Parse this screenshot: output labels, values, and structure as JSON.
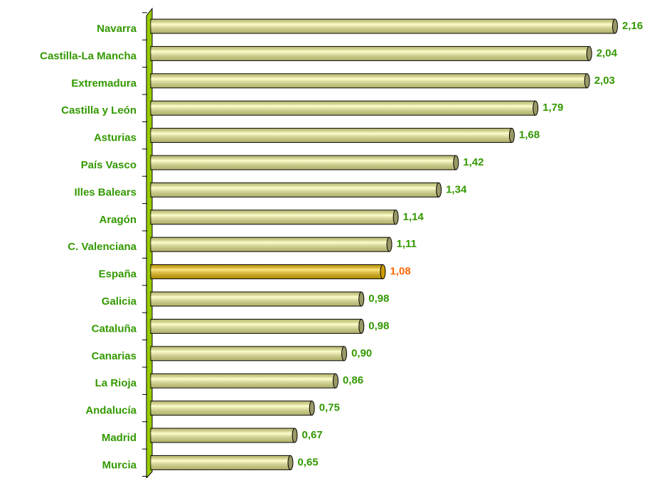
{
  "chart_data": {
    "type": "bar",
    "orientation": "horizontal",
    "categories": [
      "Navarra",
      "Castilla-La Mancha",
      "Extremadura",
      "Castilla y León",
      "Asturias",
      "País Vasco",
      "Illes Balears",
      "Aragón",
      "C. Valenciana",
      "España",
      "Galicia",
      "Cataluña",
      "Canarias",
      "La Rioja",
      "Andalucía",
      "Madrid",
      "Murcia"
    ],
    "values": [
      2.16,
      2.04,
      2.03,
      1.79,
      1.68,
      1.42,
      1.34,
      1.14,
      1.11,
      1.08,
      0.98,
      0.98,
      0.9,
      0.86,
      0.75,
      0.67,
      0.65
    ],
    "value_labels": [
      "2,16",
      "2,04",
      "2,03",
      "1,79",
      "1,68",
      "1,42",
      "1,34",
      "1,14",
      "1,11",
      "1,08",
      "0,98",
      "0,98",
      "0,90",
      "0,86",
      "0,75",
      "0,67",
      "0,65"
    ],
    "colors": [
      "#ffff99",
      "#ffff99",
      "#ffff99",
      "#ffff99",
      "#ffff99",
      "#ffff99",
      "#ffff99",
      "#ffff99",
      "#ffff99",
      "#ffcc00",
      "#ffff99",
      "#ffff99",
      "#ffff99",
      "#ffff99",
      "#ffff99",
      "#ffff99",
      "#ffff99"
    ],
    "label_colors": [
      "#339900",
      "#339900",
      "#339900",
      "#339900",
      "#339900",
      "#339900",
      "#339900",
      "#339900",
      "#339900",
      "#ff6600",
      "#339900",
      "#339900",
      "#339900",
      "#339900",
      "#339900",
      "#339900",
      "#339900"
    ],
    "category_color": "#339900"
  }
}
